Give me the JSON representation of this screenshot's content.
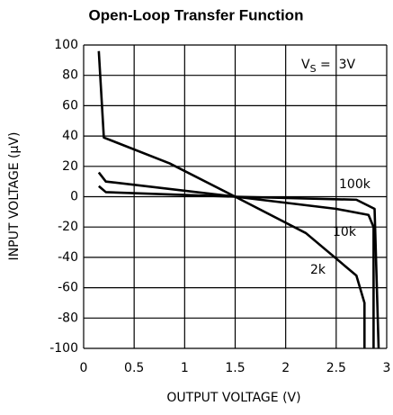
{
  "chart_data": {
    "type": "line",
    "title": "Open-Loop Transfer Function",
    "xlabel": "OUTPUT VOLTAGE (V)",
    "ylabel": "INPUT VOLTAGE (μV)",
    "annotation": {
      "text": "V",
      "sub": "S",
      "rest": " =  3V"
    },
    "xlim": [
      0,
      3
    ],
    "xticks": [
      0,
      0.5,
      1,
      1.5,
      2,
      2.5,
      3
    ],
    "ylim": [
      -100,
      100
    ],
    "yticks": [
      -100,
      -80,
      -60,
      -40,
      -20,
      0,
      20,
      40,
      60,
      80,
      100
    ],
    "grid": true,
    "series": [
      {
        "name": "100k",
        "color": "#000000",
        "x": [
          0.15,
          0.22,
          1.5,
          2.7,
          2.88,
          2.92
        ],
        "values": [
          7,
          3,
          0,
          -2,
          -8,
          -100
        ]
      },
      {
        "name": "10k",
        "color": "#000000",
        "x": [
          0.15,
          0.22,
          1.5,
          2.5,
          2.82,
          2.87,
          2.87
        ],
        "values": [
          16,
          10,
          0,
          -8,
          -12,
          -20,
          -100
        ]
      },
      {
        "name": "2k",
        "color": "#000000",
        "x": [
          0.15,
          0.2,
          0.85,
          1.5,
          2.2,
          2.7,
          2.78,
          2.78
        ],
        "values": [
          96,
          39,
          22,
          0,
          -24,
          -52,
          -70,
          -100
        ]
      }
    ]
  }
}
